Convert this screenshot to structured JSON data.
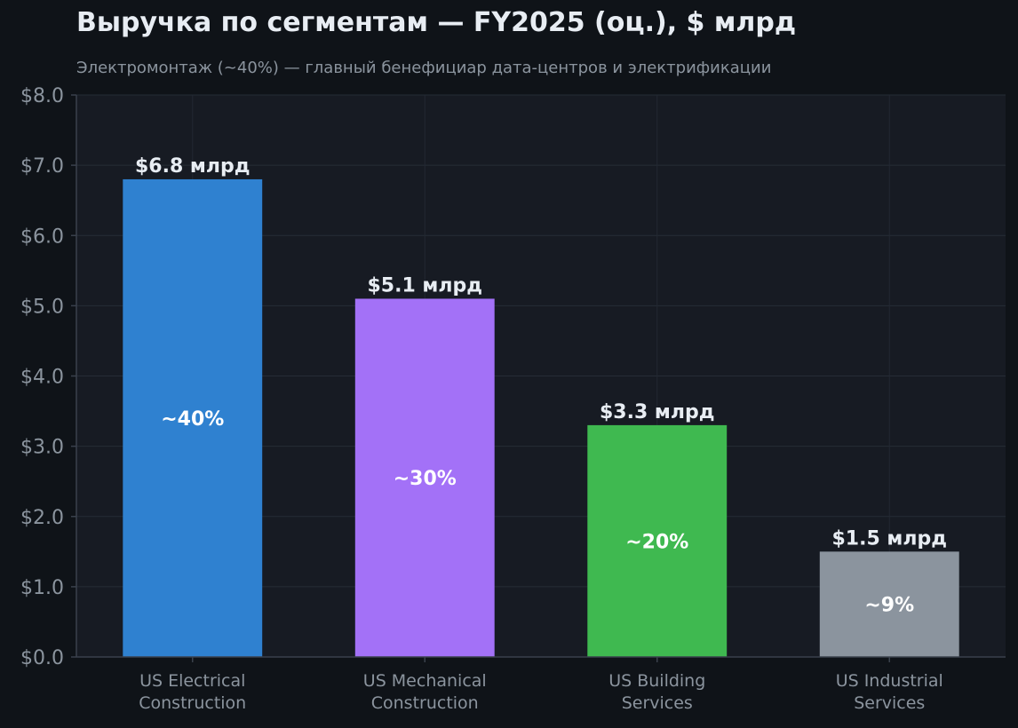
{
  "chart_data": {
    "type": "bar",
    "title": "Выручка по сегментам — FY2025 (оц.), $ млрд",
    "subtitle": "Электромонтаж (~40%) — главный бенефициар дата-центров и электрификации",
    "categories": [
      [
        "US Electrical",
        "Construction"
      ],
      [
        "US Mechanical",
        "Construction"
      ],
      [
        "US Building",
        "Services"
      ],
      [
        "US Industrial",
        "Services"
      ]
    ],
    "values": [
      6.8,
      5.1,
      3.3,
      1.5
    ],
    "value_labels": [
      "$6.8 млрд",
      "$5.1 млрд",
      "$3.3 млрд",
      "$1.5 млрд"
    ],
    "share_labels": [
      "~40%",
      "~30%",
      "~20%",
      "~9%"
    ],
    "colors": [
      "#2f81d0",
      "#a371f7",
      "#3fb950",
      "#8b949e"
    ],
    "ylim": [
      0,
      8
    ],
    "yticks": [
      0,
      1,
      2,
      3,
      4,
      5,
      6,
      7,
      8
    ],
    "ytick_labels": [
      "$0.0",
      "$1.0",
      "$2.0",
      "$3.0",
      "$4.0",
      "$5.0",
      "$6.0",
      "$7.0",
      "$8.0"
    ],
    "grid": true,
    "xlabel": "",
    "ylabel": ""
  }
}
